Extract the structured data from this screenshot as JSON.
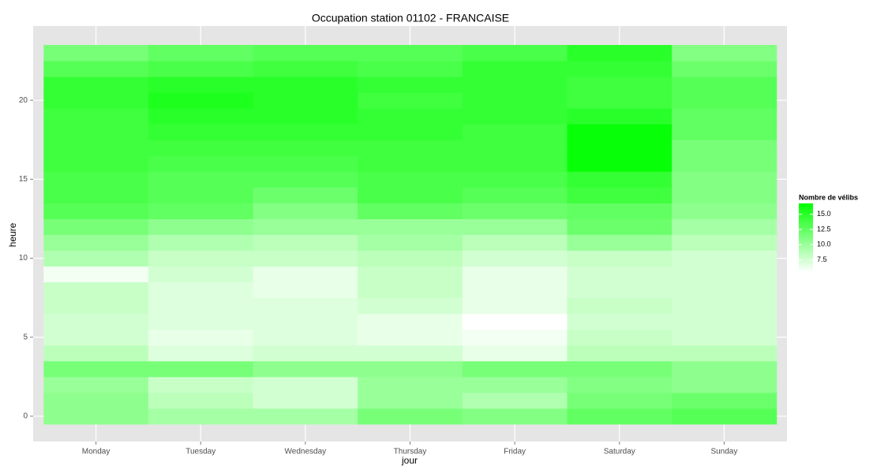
{
  "chart_data": {
    "type": "heatmap",
    "title": "Occupation station 01102 - FRANCAISE",
    "x_label": "jour",
    "y_label": "heure",
    "categories": [
      "Monday",
      "Tuesday",
      "Wednesday",
      "Thursday",
      "Friday",
      "Saturday",
      "Sunday"
    ],
    "y": [
      0,
      1,
      2,
      3,
      4,
      5,
      6,
      7,
      8,
      9,
      10,
      11,
      12,
      13,
      14,
      15,
      16,
      17,
      18,
      19,
      20,
      21,
      22,
      23
    ],
    "z": [
      [
        10.5,
        10.5,
        10,
        11.5,
        8.5,
        7.5,
        7.5,
        8,
        8,
        6,
        9,
        10,
        11.5,
        13,
        13.5,
        13.5,
        14,
        14,
        14,
        14,
        14.5,
        14.5,
        13,
        11.5
      ],
      [
        9.5,
        8.5,
        8,
        11.5,
        7,
        6.5,
        7,
        7,
        7,
        7.5,
        8,
        9,
        10.5,
        12.5,
        13,
        13,
        13.5,
        14,
        14.5,
        15,
        15.5,
        15,
        13.5,
        12.5
      ],
      [
        9.5,
        7.5,
        7.5,
        10.5,
        7.5,
        7,
        7,
        7,
        6.5,
        6.5,
        8,
        8.5,
        10,
        11,
        12,
        13,
        13.5,
        14,
        14.5,
        15,
        15,
        15,
        14,
        13
      ],
      [
        11.5,
        10,
        10,
        10.5,
        7.5,
        6.5,
        6.5,
        7.5,
        8,
        8,
        8.5,
        9.5,
        10,
        12.5,
        13.5,
        13.5,
        14,
        14,
        14.5,
        14.5,
        14,
        14.5,
        13.5,
        13
      ],
      [
        11,
        9,
        10,
        11.5,
        6.5,
        6,
        5.5,
        6.5,
        6.5,
        6.5,
        7.5,
        8.5,
        10,
        12,
        13,
        13.5,
        14,
        14,
        14,
        14.5,
        14.5,
        14.5,
        14.5,
        13.5
      ],
      [
        12.5,
        11.5,
        11,
        11.5,
        8.5,
        8,
        7.5,
        8,
        7.5,
        7.5,
        8,
        10,
        12,
        12.5,
        14,
        14.5,
        16.5,
        16.5,
        16.5,
        15,
        14,
        14,
        14.5,
        15
      ],
      [
        13,
        12,
        10.5,
        10.5,
        8.5,
        7.5,
        7.5,
        7.5,
        7.5,
        7.5,
        7.5,
        8.5,
        9.5,
        10.5,
        11,
        11,
        11.5,
        11.5,
        12.5,
        12.5,
        13,
        13,
        12,
        11
      ]
    ],
    "ylim": [
      -1.6,
      24.7
    ],
    "yticks": [
      0,
      5,
      10,
      15,
      20
    ],
    "grid": true,
    "legend": {
      "title": "Nombre de vélibs",
      "lim": [
        5.5,
        16.8
      ],
      "ticks": [
        7.5,
        {
          "value": 10,
          "label": "10.0"
        },
        12.5,
        {
          "value": 15,
          "label": "15.0"
        }
      ],
      "low": "#ffffff",
      "high": "#00ff00"
    }
  }
}
